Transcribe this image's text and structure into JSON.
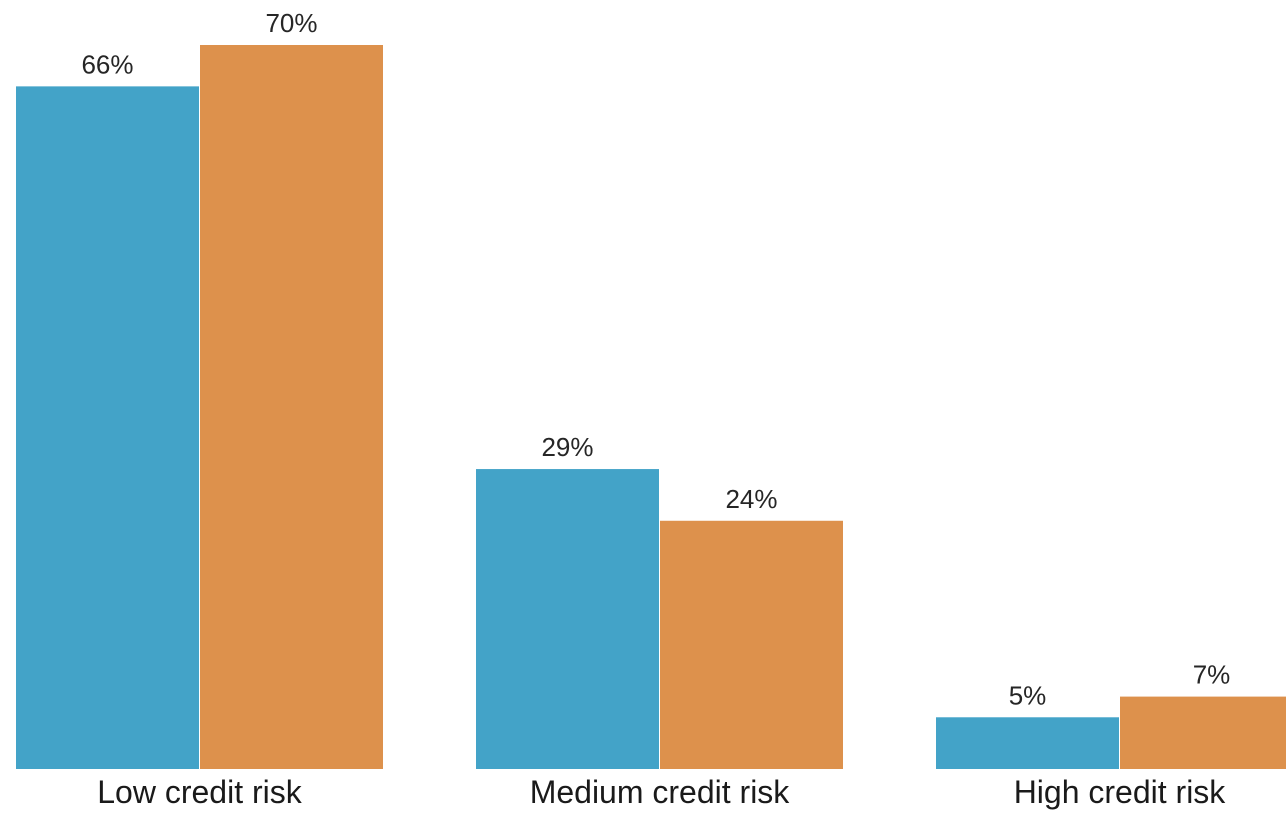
{
  "chart_data": {
    "type": "bar",
    "categories": [
      "Low credit risk",
      "Medium credit risk",
      "High credit risk"
    ],
    "series": [
      {
        "values": [
          66,
          29,
          5
        ],
        "labels": [
          "66%",
          "29%",
          "5%"
        ],
        "color": "#43a3c8"
      },
      {
        "values": [
          70,
          24,
          7
        ],
        "labels": [
          "70%",
          "24%",
          "7%"
        ],
        "color": "#dd914c"
      }
    ],
    "ylim": [
      0,
      70
    ],
    "grid": false,
    "legend": "none"
  }
}
